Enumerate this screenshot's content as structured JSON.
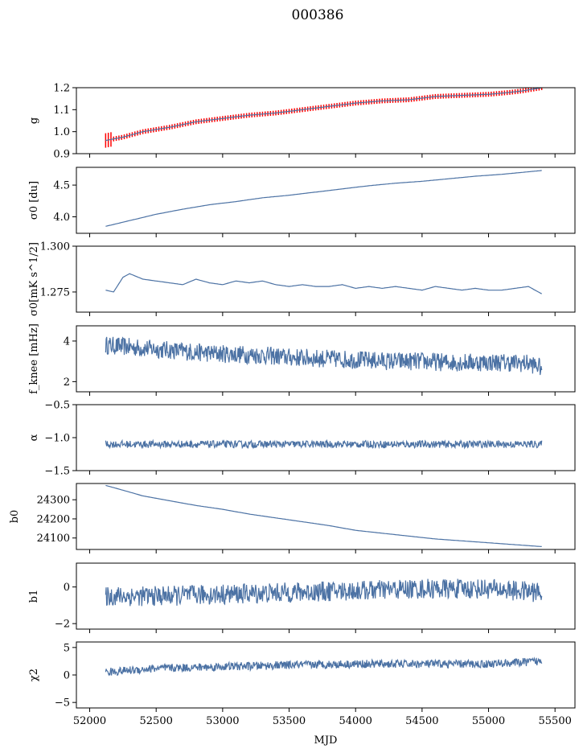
{
  "figure_title": "000386",
  "xlabel": "MJD",
  "x_ticks": [
    "52000",
    "52500",
    "53000",
    "53500",
    "54000",
    "54500",
    "55000",
    "55500"
  ],
  "colors": {
    "series": "#4c72a4",
    "error": "#ff0000",
    "frame": "#000000"
  },
  "chart_data": [
    {
      "type": "line",
      "ylabel": "g",
      "xlim": [
        51900,
        55650
      ],
      "ylim": [
        0.9,
        1.2
      ],
      "ytick_values": [
        0.9,
        1.0,
        1.1,
        1.2
      ],
      "ytick_labels": [
        "0.9",
        "1.0",
        "1.1",
        "1.2"
      ],
      "error_band": true,
      "x": [
        52120,
        52250,
        52400,
        52600,
        52800,
        53000,
        53200,
        53400,
        53600,
        53800,
        54000,
        54200,
        54400,
        54600,
        54800,
        55000,
        55150,
        55250,
        55400
      ],
      "y": [
        0.96,
        0.975,
        1.0,
        1.02,
        1.045,
        1.06,
        1.075,
        1.085,
        1.1,
        1.115,
        1.13,
        1.14,
        1.145,
        1.16,
        1.165,
        1.17,
        1.178,
        1.185,
        1.2
      ]
    },
    {
      "type": "line",
      "ylabel": "σ0 [du]",
      "xlim": [
        51900,
        55650
      ],
      "ylim": [
        3.74,
        4.78
      ],
      "ytick_values": [
        4.0,
        4.5
      ],
      "ytick_labels": [
        "4.0",
        "4.5"
      ],
      "x": [
        52120,
        52300,
        52500,
        52700,
        52900,
        53100,
        53300,
        53500,
        53700,
        53900,
        54100,
        54300,
        54500,
        54700,
        54900,
        55100,
        55300,
        55400
      ],
      "y": [
        3.85,
        3.94,
        4.04,
        4.12,
        4.19,
        4.24,
        4.3,
        4.34,
        4.39,
        4.44,
        4.49,
        4.53,
        4.56,
        4.6,
        4.64,
        4.67,
        4.71,
        4.73
      ]
    },
    {
      "type": "line",
      "ylabel": "σ0[mK s^1/2]",
      "xlim": [
        51900,
        55650
      ],
      "ylim": [
        1.264,
        1.3
      ],
      "ytick_values": [
        1.275,
        1.3
      ],
      "ytick_labels": [
        "1.275",
        "1.300"
      ],
      "x": [
        52120,
        52180,
        52250,
        52300,
        52400,
        52500,
        52600,
        52700,
        52800,
        52900,
        53000,
        53100,
        53200,
        53300,
        53400,
        53500,
        53600,
        53700,
        53800,
        53900,
        54000,
        54100,
        54200,
        54300,
        54400,
        54500,
        54600,
        54700,
        54800,
        54900,
        55000,
        55100,
        55200,
        55300,
        55400
      ],
      "y": [
        1.276,
        1.275,
        1.283,
        1.285,
        1.282,
        1.281,
        1.28,
        1.279,
        1.282,
        1.28,
        1.279,
        1.281,
        1.28,
        1.281,
        1.279,
        1.278,
        1.279,
        1.278,
        1.278,
        1.279,
        1.277,
        1.278,
        1.277,
        1.278,
        1.277,
        1.276,
        1.278,
        1.277,
        1.276,
        1.277,
        1.276,
        1.276,
        1.277,
        1.278,
        1.274
      ]
    },
    {
      "type": "line",
      "ylabel": "f_knee [mHz]",
      "xlim": [
        51900,
        55650
      ],
      "ylim": [
        1.5,
        4.75
      ],
      "ytick_values": [
        2,
        4
      ],
      "ytick_labels": [
        "2",
        "4"
      ],
      "noise_amplitude": 0.45,
      "x": [
        52120,
        52300,
        52500,
        52700,
        52900,
        53100,
        53300,
        53500,
        53700,
        53900,
        54100,
        54300,
        54500,
        54700,
        54900,
        55100,
        55300,
        55400
      ],
      "y": [
        3.8,
        3.7,
        3.6,
        3.5,
        3.4,
        3.35,
        3.3,
        3.2,
        3.15,
        3.1,
        3.05,
        3.0,
        3.0,
        2.95,
        2.95,
        2.95,
        2.9,
        2.7
      ]
    },
    {
      "type": "line",
      "ylabel": "α",
      "xlim": [
        51900,
        55650
      ],
      "ylim": [
        -1.5,
        -0.5
      ],
      "ytick_values": [
        -1.5,
        -1.0,
        -0.5
      ],
      "ytick_labels": [
        "−1.5",
        "−1.0",
        "−0.5"
      ],
      "noise_amplitude": 0.055,
      "x": [
        52120,
        53000,
        54000,
        55000,
        55400
      ],
      "y": [
        -1.1,
        -1.1,
        -1.1,
        -1.1,
        -1.1
      ]
    },
    {
      "type": "line",
      "ylabel": "b0",
      "xlim": [
        51900,
        55650
      ],
      "ylim": [
        24040,
        24385
      ],
      "ytick_values": [
        24100,
        24200,
        24300
      ],
      "ytick_labels": [
        "24100",
        "24200",
        "24300"
      ],
      "x": [
        52120,
        52250,
        52400,
        52600,
        52800,
        53000,
        53200,
        53400,
        53600,
        53800,
        54000,
        54200,
        54400,
        54600,
        54800,
        55000,
        55200,
        55400
      ],
      "y": [
        24375,
        24350,
        24320,
        24295,
        24270,
        24250,
        24225,
        24205,
        24185,
        24165,
        24140,
        24125,
        24110,
        24095,
        24085,
        24075,
        24065,
        24055
      ]
    },
    {
      "type": "line",
      "ylabel": "b1",
      "xlim": [
        51900,
        55650
      ],
      "ylim": [
        -2.3,
        1.3
      ],
      "ytick_values": [
        -2,
        0
      ],
      "ytick_labels": [
        "−2",
        "0"
      ],
      "noise_amplitude": 0.55,
      "x": [
        52120,
        52500,
        53000,
        53500,
        54000,
        54500,
        55000,
        55400
      ],
      "y": [
        -0.5,
        -0.5,
        -0.4,
        -0.3,
        -0.2,
        -0.1,
        -0.1,
        -0.3
      ]
    },
    {
      "type": "line",
      "ylabel": "χ2",
      "xlim": [
        51900,
        55650
      ],
      "ylim": [
        -6,
        6
      ],
      "ytick_values": [
        -5,
        0,
        5
      ],
      "ytick_labels": [
        "−5",
        "0",
        "5"
      ],
      "noise_amplitude": 0.75,
      "x": [
        52120,
        52500,
        53000,
        53500,
        54000,
        54500,
        55000,
        55400
      ],
      "y": [
        0.5,
        1.2,
        1.5,
        1.8,
        2.0,
        2.0,
        2.0,
        2.5
      ]
    }
  ]
}
